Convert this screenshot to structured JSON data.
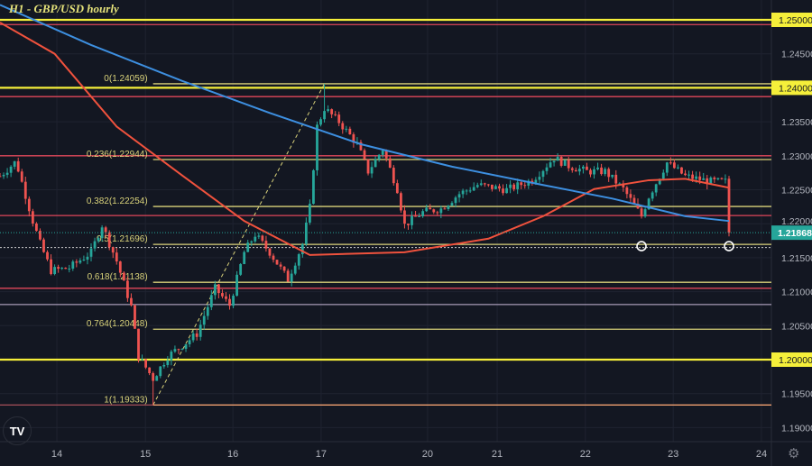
{
  "title": "H1 - GBP/USD hourly",
  "logo": "TV",
  "settings_icon": "gear-icon",
  "colors": {
    "background": "#131722",
    "grid": "#1f2330",
    "up": "#26a69a",
    "down": "#ef5350",
    "ma_fast": "#f0523d",
    "ma_slow": "#3d8fe0",
    "key_level": "#f5ef3a",
    "fib": "#d9d27a",
    "resistance": "#e0475a",
    "last_price": "#26a69a"
  },
  "chart_data": {
    "type": "candlestick",
    "symbol": "GBP/USD",
    "timeframe": "H1",
    "ylim": [
      1.186,
      1.2525
    ],
    "y_ticks": [
      "1.25000",
      "1.24500",
      "1.24000",
      "1.23500",
      "1.23000",
      "1.22500",
      "1.22000",
      "1.21500",
      "1.21000",
      "1.20500",
      "1.20000",
      "1.19500",
      "1.19000"
    ],
    "x_ticks": [
      {
        "label": "14",
        "hour": 15.6
      },
      {
        "label": "15",
        "hour": 39.9
      },
      {
        "label": "16",
        "hour": 63.9
      },
      {
        "label": "17",
        "hour": 88.1
      },
      {
        "label": "20",
        "hour": 117.3
      },
      {
        "label": "21",
        "hour": 136.4
      },
      {
        "label": "22",
        "hour": 160.6
      },
      {
        "label": "23",
        "hour": 184.7
      },
      {
        "label": "24",
        "hour": 208.9
      }
    ],
    "price_path": [
      [
        0,
        1.227
      ],
      [
        4,
        1.229
      ],
      [
        5,
        1.228
      ],
      [
        9,
        1.2204
      ],
      [
        11,
        1.2171
      ],
      [
        14,
        1.2131
      ],
      [
        19,
        1.2135
      ],
      [
        25,
        1.2158
      ],
      [
        28,
        1.2198
      ],
      [
        32,
        1.2145
      ],
      [
        36,
        1.2078
      ],
      [
        38,
        1.2005
      ],
      [
        42,
        1.1972
      ],
      [
        46,
        1.2005
      ],
      [
        51,
        1.2025
      ],
      [
        54,
        1.2038
      ],
      [
        59,
        1.2105
      ],
      [
        63,
        1.208
      ],
      [
        67,
        1.2158
      ],
      [
        70,
        1.2184
      ],
      [
        74,
        1.2158
      ],
      [
        79,
        1.2118
      ],
      [
        83,
        1.217
      ],
      [
        85,
        1.2224
      ],
      [
        87,
        1.2343
      ],
      [
        89,
        1.237
      ],
      [
        93,
        1.235
      ],
      [
        98,
        1.2317
      ],
      [
        101,
        1.2277
      ],
      [
        105,
        1.231
      ],
      [
        109,
        1.2251
      ],
      [
        111,
        1.2198
      ],
      [
        116,
        1.2217
      ],
      [
        121,
        1.2222
      ],
      [
        126,
        1.2244
      ],
      [
        131,
        1.2257
      ],
      [
        139,
        1.225
      ],
      [
        146,
        1.2264
      ],
      [
        152,
        1.2297
      ],
      [
        156,
        1.2285
      ],
      [
        161,
        1.2277
      ],
      [
        166,
        1.2277
      ],
      [
        171,
        1.2251
      ],
      [
        176,
        1.2211
      ],
      [
        178,
        1.224
      ],
      [
        183,
        1.229
      ],
      [
        188,
        1.227
      ],
      [
        195,
        1.2262
      ],
      [
        199,
        1.2262
      ],
      [
        200,
        1.21868
      ]
    ],
    "wicks": {
      "low": [
        [
          42,
          1.19333
        ]
      ],
      "high": [
        [
          89,
          1.24059
        ]
      ]
    },
    "moving_averages": [
      {
        "color": "#f0523d",
        "points": [
          [
            0,
            1.2496
          ],
          [
            15,
            1.245
          ],
          [
            32,
            1.2343
          ],
          [
            50,
            1.2271
          ],
          [
            67,
            1.2204
          ],
          [
            85,
            1.2154
          ],
          [
            111,
            1.2158
          ],
          [
            134,
            1.2178
          ],
          [
            149,
            1.2211
          ],
          [
            163,
            1.2251
          ],
          [
            178,
            1.2264
          ],
          [
            188,
            1.2266
          ],
          [
            200,
            1.2253
          ]
        ]
      },
      {
        "color": "#3d8fe0",
        "points": [
          [
            0,
            1.2522
          ],
          [
            25,
            1.2463
          ],
          [
            50,
            1.241
          ],
          [
            74,
            1.2363
          ],
          [
            99,
            1.2317
          ],
          [
            124,
            1.2284
          ],
          [
            149,
            1.2257
          ],
          [
            168,
            1.2237
          ],
          [
            188,
            1.2211
          ],
          [
            200,
            1.2204
          ]
        ]
      }
    ],
    "key_levels": [
      {
        "price": 1.25,
        "label": "1.25000"
      },
      {
        "price": 1.24,
        "label": "1.24000"
      },
      {
        "price": 1.2,
        "label": "1.20000"
      }
    ],
    "resistance_lines": [
      1.2493,
      1.2387,
      1.23,
      1.2212,
      1.2105
    ],
    "other_lines": [
      {
        "price": 1.2081,
        "color": "#c9b8d8"
      },
      {
        "price": 1.2165,
        "color": "#d0d0d0",
        "dotted": true
      }
    ],
    "fib_levels": [
      {
        "label": "0(1.24059)",
        "price": 1.24059
      },
      {
        "label": "0.236(1.22944)",
        "price": 1.22944
      },
      {
        "label": "0.382(1.22254)",
        "price": 1.22254
      },
      {
        "label": "0.5(1.21696)",
        "price": 1.21696
      },
      {
        "label": "0.618(1.21138)",
        "price": 1.21138
      },
      {
        "label": "0.764(1.20448)",
        "price": 1.20448
      },
      {
        "label": "1(1.19333)",
        "price": 1.19333
      }
    ],
    "fib_trendline": [
      [
        42,
        1.19333
      ],
      [
        89,
        1.24059
      ]
    ],
    "markers": [
      [
        176,
        1.2167
      ],
      [
        200,
        1.2167
      ]
    ],
    "last_price": {
      "price": 1.21868,
      "label": "1.21868"
    }
  }
}
